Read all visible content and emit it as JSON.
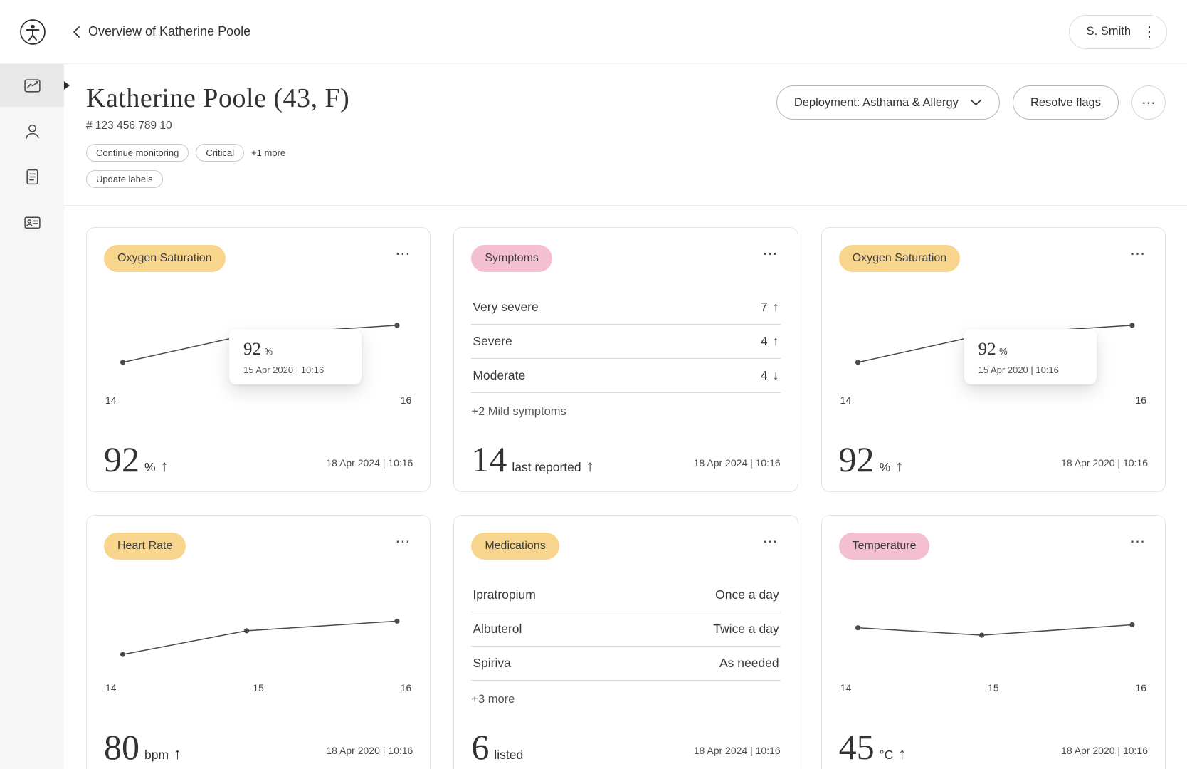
{
  "icons": {
    "kebab_horizontal": "⋯",
    "kebab_vertical": "⋮"
  },
  "colors": {
    "badge_yellow": "#f7d58c",
    "badge_pink": "#f5bfd2",
    "chart_line": "#4a4a4a"
  },
  "topbar": {
    "title": "Overview of Katherine Poole",
    "user_label": "S. Smith"
  },
  "sidebar": {
    "items": [
      {
        "icon": "chart-monitoring-icon",
        "active": true
      },
      {
        "icon": "patient-icon",
        "active": false
      },
      {
        "icon": "notes-icon",
        "active": false
      },
      {
        "icon": "care-team-icon",
        "active": false
      }
    ]
  },
  "patient": {
    "name": "Katherine Poole (43, F)",
    "id": "# 123 456 789 10",
    "labels": [
      "Continue monitoring",
      "Critical"
    ],
    "labels_more": "+1 more",
    "update_labels_button": "Update labels",
    "deployment_button": "Deployment: Asthama & Allergy",
    "resolve_flags_button": "Resolve flags"
  },
  "cards": [
    {
      "badge": "Oxygen Saturation",
      "badge_color": "yellow",
      "type": "chart",
      "chart_points": [
        [
          0.04,
          0.72
        ],
        [
          0.46,
          0.35
        ],
        [
          0.97,
          0.22
        ]
      ],
      "x_ticks": [
        "14",
        "16"
      ],
      "tooltip": {
        "value": "92",
        "unit": "%",
        "timestamp": "15 Apr 2020 | 10:16"
      },
      "stat": {
        "value": "92",
        "unit": "%",
        "trend": "↑"
      },
      "timestamp": "18 Apr 2024 | 10:16"
    },
    {
      "badge": "Symptoms",
      "badge_color": "pink",
      "type": "list",
      "rows": [
        {
          "label": "Very severe",
          "value": "7",
          "trend": "↑"
        },
        {
          "label": "Severe",
          "value": "4",
          "trend": "↑"
        },
        {
          "label": "Moderate",
          "value": "4",
          "trend": "↓"
        }
      ],
      "more_link": "+2 Mild symptoms",
      "stat": {
        "value": "14",
        "unit": "last reported",
        "trend": "↑"
      },
      "timestamp": "18 Apr 2024 | 10:16"
    },
    {
      "badge": "Oxygen Saturation",
      "badge_color": "yellow",
      "type": "chart",
      "chart_points": [
        [
          0.04,
          0.72
        ],
        [
          0.46,
          0.35
        ],
        [
          0.97,
          0.22
        ]
      ],
      "x_ticks": [
        "14",
        "16"
      ],
      "tooltip": {
        "value": "92",
        "unit": "%",
        "timestamp": "15 Apr 2020 | 10:16"
      },
      "stat": {
        "value": "92",
        "unit": "%",
        "trend": "↑"
      },
      "timestamp": "18 Apr 2020 | 10:16"
    },
    {
      "badge": "Heart Rate",
      "badge_color": "yellow",
      "type": "chart",
      "chart_points": [
        [
          0.04,
          0.78
        ],
        [
          0.46,
          0.46
        ],
        [
          0.97,
          0.33
        ]
      ],
      "x_ticks": [
        "14",
        "15",
        "16"
      ],
      "stat": {
        "value": "80",
        "unit": "bpm",
        "trend": "↑"
      },
      "timestamp": "18 Apr 2020 | 10:16"
    },
    {
      "badge": "Medications",
      "badge_color": "yellow",
      "type": "list",
      "rows": [
        {
          "label": "Ipratropium",
          "value": "Once a day"
        },
        {
          "label": "Albuterol",
          "value": "Twice a day"
        },
        {
          "label": "Spiriva",
          "value": "As needed"
        }
      ],
      "more_link": "+3 more",
      "stat": {
        "value": "6",
        "unit": "listed",
        "trend": ""
      },
      "timestamp": "18 Apr 2024 | 10:16"
    },
    {
      "badge": "Temperature",
      "badge_color": "pink",
      "type": "chart",
      "chart_points": [
        [
          0.04,
          0.42
        ],
        [
          0.46,
          0.52
        ],
        [
          0.97,
          0.38
        ]
      ],
      "x_ticks": [
        "14",
        "15",
        "16"
      ],
      "stat": {
        "value": "45",
        "unit": "°C",
        "trend": "↑"
      },
      "timestamp": "18 Apr 2020 | 10:16"
    }
  ]
}
